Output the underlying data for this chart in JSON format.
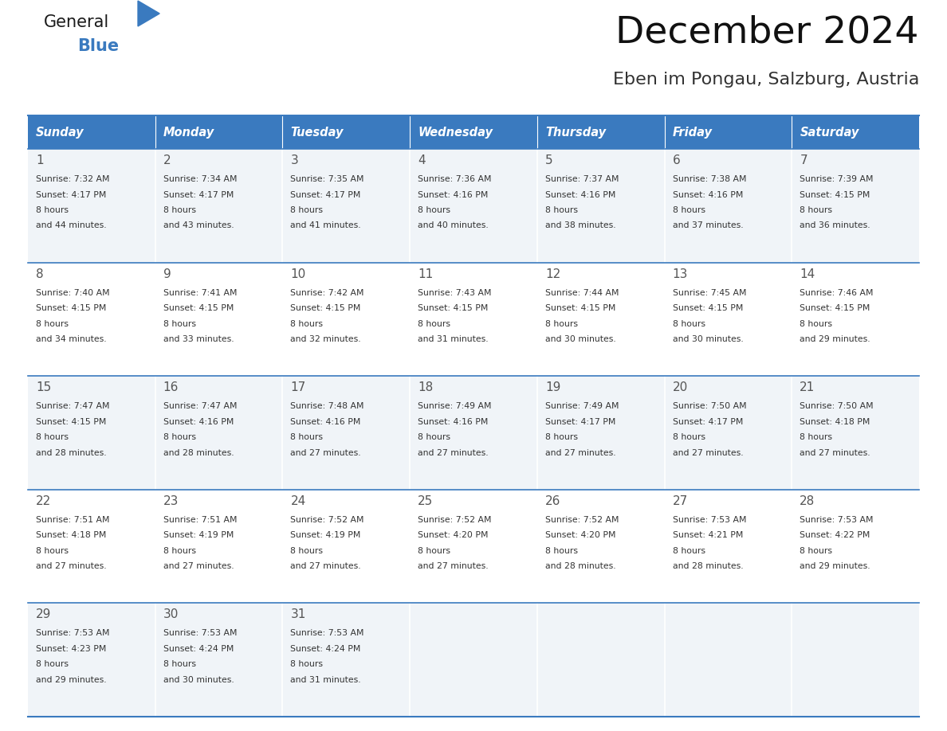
{
  "title": "December 2024",
  "subtitle": "Eben im Pongau, Salzburg, Austria",
  "header_color": "#3a7abf",
  "header_text_color": "#ffffff",
  "cell_bg_odd": "#f0f4f8",
  "cell_bg_even": "#ffffff",
  "day_number_color": "#555555",
  "text_color": "#444444",
  "line_color": "#3a7abf",
  "days_of_week": [
    "Sunday",
    "Monday",
    "Tuesday",
    "Wednesday",
    "Thursday",
    "Friday",
    "Saturday"
  ],
  "calendar_data": [
    [
      {
        "day": 1,
        "sunrise": "7:32 AM",
        "sunset": "4:17 PM",
        "daylight": "8 hours\nand 44 minutes."
      },
      {
        "day": 2,
        "sunrise": "7:34 AM",
        "sunset": "4:17 PM",
        "daylight": "8 hours\nand 43 minutes."
      },
      {
        "day": 3,
        "sunrise": "7:35 AM",
        "sunset": "4:17 PM",
        "daylight": "8 hours\nand 41 minutes."
      },
      {
        "day": 4,
        "sunrise": "7:36 AM",
        "sunset": "4:16 PM",
        "daylight": "8 hours\nand 40 minutes."
      },
      {
        "day": 5,
        "sunrise": "7:37 AM",
        "sunset": "4:16 PM",
        "daylight": "8 hours\nand 38 minutes."
      },
      {
        "day": 6,
        "sunrise": "7:38 AM",
        "sunset": "4:16 PM",
        "daylight": "8 hours\nand 37 minutes."
      },
      {
        "day": 7,
        "sunrise": "7:39 AM",
        "sunset": "4:15 PM",
        "daylight": "8 hours\nand 36 minutes."
      }
    ],
    [
      {
        "day": 8,
        "sunrise": "7:40 AM",
        "sunset": "4:15 PM",
        "daylight": "8 hours\nand 34 minutes."
      },
      {
        "day": 9,
        "sunrise": "7:41 AM",
        "sunset": "4:15 PM",
        "daylight": "8 hours\nand 33 minutes."
      },
      {
        "day": 10,
        "sunrise": "7:42 AM",
        "sunset": "4:15 PM",
        "daylight": "8 hours\nand 32 minutes."
      },
      {
        "day": 11,
        "sunrise": "7:43 AM",
        "sunset": "4:15 PM",
        "daylight": "8 hours\nand 31 minutes."
      },
      {
        "day": 12,
        "sunrise": "7:44 AM",
        "sunset": "4:15 PM",
        "daylight": "8 hours\nand 30 minutes."
      },
      {
        "day": 13,
        "sunrise": "7:45 AM",
        "sunset": "4:15 PM",
        "daylight": "8 hours\nand 30 minutes."
      },
      {
        "day": 14,
        "sunrise": "7:46 AM",
        "sunset": "4:15 PM",
        "daylight": "8 hours\nand 29 minutes."
      }
    ],
    [
      {
        "day": 15,
        "sunrise": "7:47 AM",
        "sunset": "4:15 PM",
        "daylight": "8 hours\nand 28 minutes."
      },
      {
        "day": 16,
        "sunrise": "7:47 AM",
        "sunset": "4:16 PM",
        "daylight": "8 hours\nand 28 minutes."
      },
      {
        "day": 17,
        "sunrise": "7:48 AM",
        "sunset": "4:16 PM",
        "daylight": "8 hours\nand 27 minutes."
      },
      {
        "day": 18,
        "sunrise": "7:49 AM",
        "sunset": "4:16 PM",
        "daylight": "8 hours\nand 27 minutes."
      },
      {
        "day": 19,
        "sunrise": "7:49 AM",
        "sunset": "4:17 PM",
        "daylight": "8 hours\nand 27 minutes."
      },
      {
        "day": 20,
        "sunrise": "7:50 AM",
        "sunset": "4:17 PM",
        "daylight": "8 hours\nand 27 minutes."
      },
      {
        "day": 21,
        "sunrise": "7:50 AM",
        "sunset": "4:18 PM",
        "daylight": "8 hours\nand 27 minutes."
      }
    ],
    [
      {
        "day": 22,
        "sunrise": "7:51 AM",
        "sunset": "4:18 PM",
        "daylight": "8 hours\nand 27 minutes."
      },
      {
        "day": 23,
        "sunrise": "7:51 AM",
        "sunset": "4:19 PM",
        "daylight": "8 hours\nand 27 minutes."
      },
      {
        "day": 24,
        "sunrise": "7:52 AM",
        "sunset": "4:19 PM",
        "daylight": "8 hours\nand 27 minutes."
      },
      {
        "day": 25,
        "sunrise": "7:52 AM",
        "sunset": "4:20 PM",
        "daylight": "8 hours\nand 27 minutes."
      },
      {
        "day": 26,
        "sunrise": "7:52 AM",
        "sunset": "4:20 PM",
        "daylight": "8 hours\nand 28 minutes."
      },
      {
        "day": 27,
        "sunrise": "7:53 AM",
        "sunset": "4:21 PM",
        "daylight": "8 hours\nand 28 minutes."
      },
      {
        "day": 28,
        "sunrise": "7:53 AM",
        "sunset": "4:22 PM",
        "daylight": "8 hours\nand 29 minutes."
      }
    ],
    [
      {
        "day": 29,
        "sunrise": "7:53 AM",
        "sunset": "4:23 PM",
        "daylight": "8 hours\nand 29 minutes."
      },
      {
        "day": 30,
        "sunrise": "7:53 AM",
        "sunset": "4:24 PM",
        "daylight": "8 hours\nand 30 minutes."
      },
      {
        "day": 31,
        "sunrise": "7:53 AM",
        "sunset": "4:24 PM",
        "daylight": "8 hours\nand 31 minutes."
      },
      null,
      null,
      null,
      null
    ]
  ]
}
